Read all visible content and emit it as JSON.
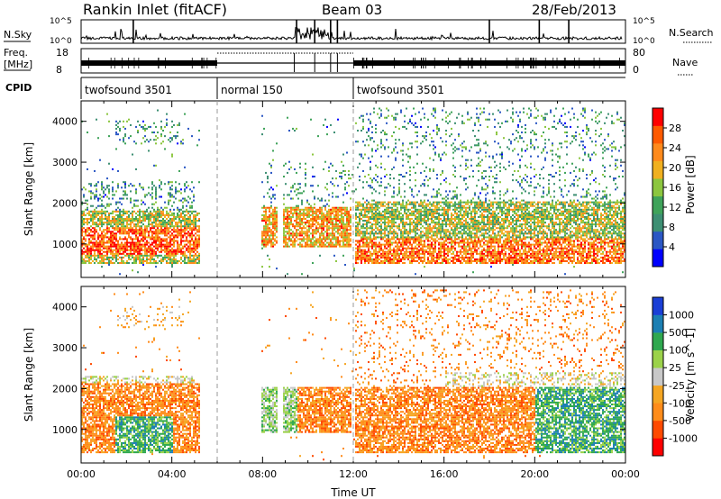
{
  "header": {
    "title": "Rankin Inlet (fitACF)",
    "beam": "Beam 03",
    "date": "28/Feb/2013"
  },
  "top_panels": {
    "nsky_label": "N.Sky",
    "nsearch_label": "N.Search",
    "nsky_ticks": [
      "10^5",
      "10^0"
    ],
    "nsearch_ticks": [
      "10^5",
      "10^0"
    ],
    "freq_label_line1": "Freq.",
    "freq_label_line2": "[MHz]",
    "freq_ticks": [
      "18",
      "8"
    ],
    "nave_label": "Nave",
    "nave_ticks": [
      "80",
      "0"
    ],
    "cpid_label": "CPID",
    "cpid_segments": [
      {
        "label": "twofsound 3501",
        "start_hour": 0,
        "end_hour": 6
      },
      {
        "label": "normal 150",
        "start_hour": 6,
        "end_hour": 12
      },
      {
        "label": "twofsound 3501",
        "start_hour": 12,
        "end_hour": 24
      }
    ]
  },
  "colors": {
    "power_scale": [
      "#0000ff",
      "#2b57c4",
      "#3d8f73",
      "#3fa35a",
      "#8cc63f",
      "#f0b020",
      "#ff8a1c",
      "#ff5a00",
      "#ff0000"
    ],
    "velocity_scale": [
      "#ff0000",
      "#ff4a00",
      "#ff8c1a",
      "#f5a623",
      "#c8c8c8",
      "#9bd24a",
      "#2fa84f",
      "#1c7fb3",
      "#1a3fd6"
    ]
  },
  "chart_data": [
    {
      "type": "heatmap",
      "name": "power",
      "xlabel": "",
      "ylabel": "Slant Range [km]",
      "colorbar_label": "Power [dB]",
      "colorbar_ticks": [
        "28",
        "24",
        "20",
        "16",
        "12",
        "8",
        "4"
      ],
      "colorbar_range": [
        0,
        32
      ],
      "x_range_hours": [
        0,
        24
      ],
      "ylim": [
        180,
        4500
      ],
      "yticks": [
        "1000",
        "2000",
        "3000",
        "4000"
      ],
      "mode_change_lines_hours": [
        6,
        12
      ]
    },
    {
      "type": "heatmap",
      "name": "velocity",
      "xlabel": "Time UT",
      "ylabel": "Slant Range [km]",
      "colorbar_label": "Velocity [m s^-1]",
      "colorbar_ticks": [
        "1000",
        "500",
        "100",
        "25",
        "-25",
        "-100",
        "-500",
        "-1000"
      ],
      "x_range_hours": [
        0,
        24
      ],
      "xticks": [
        "00:00",
        "04:00",
        "08:00",
        "12:00",
        "16:00",
        "20:00",
        "00:00"
      ],
      "ylim": [
        180,
        4500
      ],
      "yticks": [
        "1000",
        "2000",
        "3000",
        "4000"
      ],
      "mode_change_lines_hours": [
        6,
        12
      ]
    }
  ]
}
